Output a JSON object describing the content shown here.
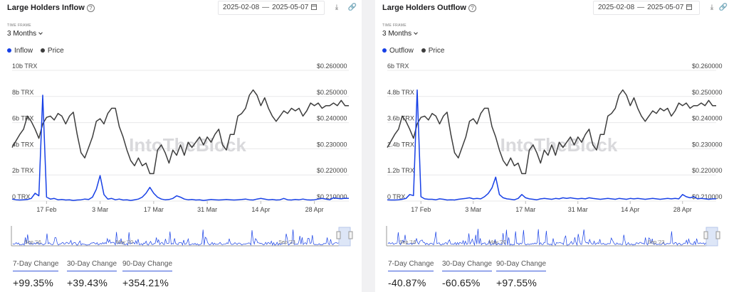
{
  "colors": {
    "flow": "#1740e6",
    "price": "#3d3d3d",
    "grid": "#e8e8ea",
    "accent": "#3b5bdb"
  },
  "watermark": "IntoTheBlock",
  "panels": [
    {
      "title": "Large Holders Inflow",
      "date_start": "2025-02-08",
      "date_end": "2025-05-07",
      "timeframe_label": "TIME FRAME",
      "timeframe_value": "3 Months",
      "changes": [
        {
          "label": "7-Day Change",
          "value": "+99.35%"
        },
        {
          "label": "30-Day Change",
          "value": "+39.43%"
        },
        {
          "label": "90-Day Change",
          "value": "+354.21%"
        }
      ],
      "chart_data": {
        "type": "line",
        "y_left_ticks": [
          "10b TRX",
          "8b TRX",
          "6b TRX",
          "4b TRX",
          "2b TRX",
          "0 TRX"
        ],
        "y_left_range": [
          0,
          10000000000
        ],
        "y_right_ticks": [
          "$0.260000",
          "$0.250000",
          "$0.240000",
          "$0.230000",
          "$0.220000",
          "$0.210000"
        ],
        "y_right_range": [
          0.21,
          0.26
        ],
        "x_ticks": [
          "17 Feb",
          "3 Mar",
          "17 Mar",
          "31 Mar",
          "14 Apr",
          "28 Apr"
        ],
        "x_range": [
          "2025-02-08",
          "2025-05-07"
        ],
        "grid": true,
        "navigator_ticks": [
          "Sep '16",
          "May '20",
          "Sep '23"
        ],
        "series": [
          {
            "name": "Inflow",
            "axis": "left",
            "values": [
              0.15,
              0.1,
              0.08,
              0.1,
              0.12,
              0.2,
              0.6,
              0.4,
              8.1,
              0.3,
              0.15,
              0.2,
              0.1,
              0.12,
              0.08,
              0.1,
              0.05,
              0.08,
              0.1,
              0.15,
              0.12,
              0.3,
              0.9,
              1.95,
              0.5,
              0.15,
              0.2,
              0.1,
              0.15,
              0.08,
              0.1,
              0.05,
              0.1,
              0.15,
              0.3,
              0.6,
              1.05,
              0.6,
              0.3,
              0.15,
              0.1,
              0.12,
              0.2,
              0.4,
              0.3,
              0.15,
              0.1,
              0.12,
              0.08,
              0.1,
              0.05,
              0.08,
              0.12,
              0.1,
              0.08,
              0.1,
              0.12,
              0.1,
              0.08,
              0.1,
              0.12,
              0.15,
              0.1,
              0.08,
              0.15,
              0.2,
              0.15,
              0.1,
              0.12,
              0.08,
              0.1,
              0.2,
              0.1,
              0.08,
              0.12,
              0.1,
              0.15,
              0.1,
              0.08,
              0.1,
              0.15,
              0.2,
              0.15,
              0.1,
              0.25,
              0.2,
              0.18,
              0.22,
              0.2
            ]
          },
          {
            "name": "Price",
            "axis": "right",
            "values": [
              0.2305,
              0.233,
              0.2355,
              0.2375,
              0.2425,
              0.2405,
              0.2375,
              0.234,
              0.2395,
              0.242,
              0.2425,
              0.241,
              0.2435,
              0.2425,
              0.2395,
              0.2425,
              0.244,
              0.2355,
              0.2285,
              0.2265,
              0.2305,
              0.2345,
              0.2405,
              0.2415,
              0.2395,
              0.2435,
              0.2455,
              0.2455,
              0.2385,
              0.2345,
              0.2295,
              0.2255,
              0.2235,
              0.2265,
              0.2235,
              0.2245,
              0.2205,
              0.2205,
              0.2295,
              0.2315,
              0.2285,
              0.2245,
              0.2295,
              0.2275,
              0.2315,
              0.2275,
              0.2325,
              0.2305,
              0.2325,
              0.2345,
              0.2315,
              0.2345,
              0.2325,
              0.2355,
              0.2375,
              0.2315,
              0.2295,
              0.2355,
              0.2355,
              0.2425,
              0.2435,
              0.2455,
              0.2505,
              0.2525,
              0.2505,
              0.2465,
              0.2495,
              0.2455,
              0.2425,
              0.2405,
              0.2425,
              0.2445,
              0.2435,
              0.2455,
              0.2445,
              0.2455,
              0.2425,
              0.2445,
              0.2475,
              0.2465,
              0.2475,
              0.2455,
              0.2465,
              0.2465,
              0.2475,
              0.2465,
              0.2485,
              0.2465,
              0.2465
            ]
          }
        ]
      }
    },
    {
      "title": "Large Holders Outflow",
      "date_start": "2025-02-08",
      "date_end": "2025-05-07",
      "timeframe_label": "TIME FRAME",
      "timeframe_value": "3 Months",
      "changes": [
        {
          "label": "7-Day Change",
          "value": "-40.87%"
        },
        {
          "label": "30-Day Change",
          "value": "-60.65%"
        },
        {
          "label": "90-Day Change",
          "value": "+97.55%"
        }
      ],
      "chart_data": {
        "type": "line",
        "y_left_ticks": [
          "6b TRX",
          "4.8b TRX",
          "3.6b TRX",
          "2.4b TRX",
          "1.2b TRX",
          "0 TRX"
        ],
        "y_left_range": [
          0,
          6000000000
        ],
        "y_right_ticks": [
          "$0.260000",
          "$0.250000",
          "$0.240000",
          "$0.230000",
          "$0.220000",
          "$0.210000"
        ],
        "y_right_range": [
          0.21,
          0.26
        ],
        "x_ticks": [
          "17 Feb",
          "3 Mar",
          "17 Mar",
          "31 Mar",
          "14 Apr",
          "28 Apr"
        ],
        "x_range": [
          "2025-02-08",
          "2025-05-07"
        ],
        "grid": true,
        "navigator_ticks": [
          "Sep '16",
          "May '20",
          "Sep '23"
        ],
        "series": [
          {
            "name": "Outflow",
            "axis": "left",
            "values": [
              0.06,
              0.05,
              0.05,
              0.06,
              0.08,
              0.12,
              0.3,
              0.25,
              5.1,
              0.2,
              0.1,
              0.08,
              0.08,
              0.06,
              0.1,
              0.08,
              0.05,
              0.06,
              0.05,
              0.08,
              0.1,
              0.12,
              0.15,
              0.1,
              0.12,
              0.1,
              0.2,
              0.35,
              0.6,
              1.1,
              0.3,
              0.15,
              0.1,
              0.08,
              0.06,
              0.12,
              0.3,
              0.15,
              0.1,
              0.08,
              0.06,
              0.1,
              0.12,
              0.1,
              0.08,
              0.12,
              0.1,
              0.15,
              0.12,
              0.15,
              0.12,
              0.1,
              0.12,
              0.1,
              0.15,
              0.12,
              0.1,
              0.08,
              0.1,
              0.12,
              0.1,
              0.08,
              0.12,
              0.1,
              0.08,
              0.12,
              0.1,
              0.12,
              0.1,
              0.08,
              0.1,
              0.12,
              0.1,
              0.08,
              0.1,
              0.12,
              0.1,
              0.12,
              0.1,
              0.3,
              0.2,
              0.15,
              0.2,
              0.1,
              0.12,
              0.1,
              0.08,
              0.1,
              0.1
            ]
          },
          {
            "name": "Price",
            "axis": "right",
            "values": [
              0.2305,
              0.233,
              0.2355,
              0.2375,
              0.2425,
              0.2405,
              0.2375,
              0.234,
              0.2395,
              0.242,
              0.2425,
              0.241,
              0.2435,
              0.2425,
              0.2395,
              0.2425,
              0.244,
              0.2355,
              0.2285,
              0.2265,
              0.2305,
              0.2345,
              0.2405,
              0.2415,
              0.2395,
              0.2435,
              0.2455,
              0.2455,
              0.2385,
              0.2345,
              0.2295,
              0.2255,
              0.2235,
              0.2265,
              0.2235,
              0.2245,
              0.2205,
              0.2205,
              0.2295,
              0.2315,
              0.2285,
              0.2245,
              0.2295,
              0.2275,
              0.2315,
              0.2275,
              0.2325,
              0.2305,
              0.2325,
              0.2345,
              0.2315,
              0.2345,
              0.2325,
              0.2355,
              0.2375,
              0.2315,
              0.2295,
              0.2355,
              0.2355,
              0.2425,
              0.2435,
              0.2455,
              0.2505,
              0.2525,
              0.2505,
              0.2465,
              0.2495,
              0.2455,
              0.2425,
              0.2405,
              0.2425,
              0.2445,
              0.2435,
              0.2455,
              0.2445,
              0.2455,
              0.2425,
              0.2445,
              0.2475,
              0.2465,
              0.2475,
              0.2455,
              0.2465,
              0.2465,
              0.2475,
              0.2465,
              0.2485,
              0.2465,
              0.2465
            ]
          }
        ]
      }
    }
  ]
}
